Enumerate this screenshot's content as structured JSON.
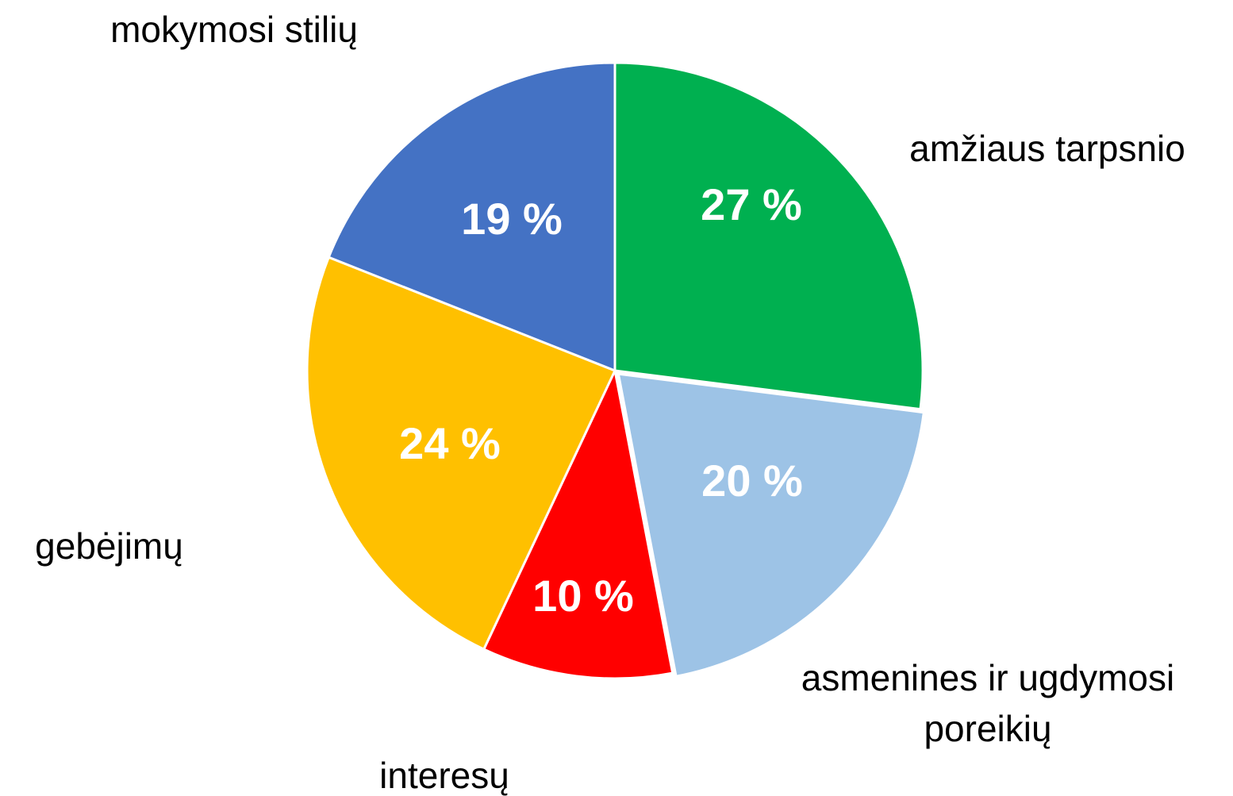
{
  "chart_data": {
    "type": "pie",
    "categories": [
      "amžiaus tarpsnio",
      "asmenines ir ugdymosi poreikių",
      "interesų",
      "gebėjimų",
      "mokymosi stilių"
    ],
    "values": [
      27,
      20,
      10,
      24,
      19
    ],
    "value_labels": [
      "27 %",
      "20 %",
      "10 %",
      "24 %",
      "19 %"
    ],
    "colors": [
      "#00b050",
      "#9dc3e6",
      "#ff0000",
      "#ffc000",
      "#4472c4"
    ]
  }
}
